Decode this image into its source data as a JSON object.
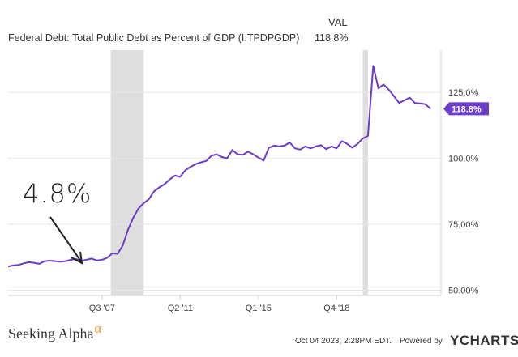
{
  "legend": {
    "header": "VAL",
    "series_name": "Federal Debt: Total Public Debt as Percent of GDP (I:TPDPGDP)",
    "series_value": "118.8%"
  },
  "chart_data": {
    "type": "line",
    "title": "",
    "xlabel": "",
    "ylabel": "",
    "ylim": [
      48,
      141
    ],
    "y_ticks": [
      "125.0%",
      "100.0%",
      "75.00%",
      "50.00%"
    ],
    "y_tick_values": [
      125,
      100,
      75,
      50
    ],
    "x_ticks": [
      "Q3 '07",
      "Q2 '11",
      "Q1 '15",
      "Q4 '18"
    ],
    "x_tick_values": [
      2007.5,
      2011.25,
      2015.0,
      2018.75
    ],
    "xlim": [
      2003.0,
      2023.75
    ],
    "grid": "horizontal",
    "recession_bands": [
      [
        2007.92,
        2009.5
      ],
      [
        2020.0,
        2020.25
      ]
    ],
    "end_label": "118.8%",
    "annotation": "4.8%",
    "color": "#6a3cc8",
    "series": [
      {
        "x": [
          2003.0,
          2003.25,
          2003.5,
          2003.75,
          2004.0,
          2004.25,
          2004.5,
          2004.75,
          2005.0,
          2005.25,
          2005.5,
          2005.75,
          2006.0,
          2006.25,
          2006.5,
          2006.75,
          2007.0,
          2007.25,
          2007.5,
          2007.75,
          2008.0,
          2008.25,
          2008.5,
          2008.75,
          2009.0,
          2009.25,
          2009.5,
          2009.75,
          2010.0,
          2010.25,
          2010.5,
          2010.75,
          2011.0,
          2011.25,
          2011.5,
          2011.75,
          2012.0,
          2012.25,
          2012.5,
          2012.75,
          2013.0,
          2013.25,
          2013.5,
          2013.75,
          2014.0,
          2014.25,
          2014.5,
          2014.75,
          2015.0,
          2015.25,
          2015.5,
          2015.75,
          2016.0,
          2016.25,
          2016.5,
          2016.75,
          2017.0,
          2017.25,
          2017.5,
          2017.75,
          2018.0,
          2018.25,
          2018.5,
          2018.75,
          2019.0,
          2019.25,
          2019.5,
          2019.75,
          2020.0,
          2020.25,
          2020.5,
          2020.75,
          2021.0,
          2021.25,
          2021.5,
          2021.75,
          2022.0,
          2022.25,
          2022.5,
          2022.75,
          2023.0,
          2023.25
        ],
        "y": [
          59.0,
          59.4,
          59.6,
          60.2,
          60.6,
          60.4,
          60.0,
          61.0,
          61.2,
          61.0,
          60.8,
          61.0,
          61.5,
          61.8,
          61.2,
          61.5,
          62.0,
          61.3,
          61.5,
          62.3,
          64.0,
          63.8,
          67.0,
          73.0,
          77.5,
          81.0,
          83.0,
          84.5,
          87.5,
          89.0,
          90.2,
          92.0,
          93.5,
          93.0,
          95.5,
          96.8,
          97.8,
          98.5,
          99.0,
          101.0,
          101.5,
          100.5,
          100.0,
          103.2,
          101.5,
          101.3,
          102.5,
          101.5,
          100.3,
          99.2,
          104.0,
          104.8,
          104.5,
          104.8,
          106.0,
          103.8,
          103.3,
          104.5,
          103.8,
          104.5,
          105.0,
          103.5,
          104.5,
          103.8,
          106.5,
          105.5,
          104.0,
          105.5,
          107.5,
          108.5,
          135.0,
          126.5,
          128.0,
          126.0,
          123.5,
          121.0,
          122.0,
          123.0,
          121.0,
          120.8,
          120.5,
          118.8
        ]
      }
    ]
  },
  "footer": {
    "brand": "Seeking Alpha",
    "brand_symbol": "α",
    "date": "Oct 04 2023, 2:28PM EDT.",
    "powered": "Powered by",
    "ycharts": "YCHARTS"
  }
}
